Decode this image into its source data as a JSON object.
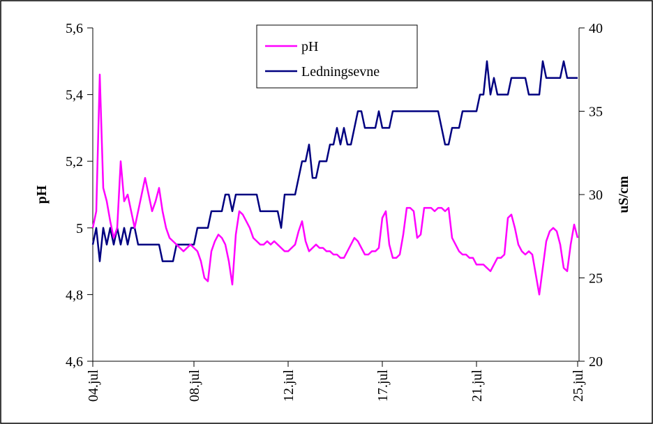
{
  "chart_data": {
    "type": "line",
    "categories": [
      "04.jul",
      null,
      null,
      null,
      null,
      null,
      null,
      null,
      null,
      null,
      null,
      null,
      null,
      null,
      null,
      null,
      null,
      null,
      null,
      null,
      null,
      null,
      null,
      null,
      null,
      null,
      null,
      null,
      null,
      "08.jul",
      null,
      null,
      null,
      null,
      null,
      null,
      null,
      null,
      null,
      null,
      null,
      null,
      null,
      null,
      null,
      null,
      null,
      null,
      null,
      null,
      null,
      null,
      null,
      null,
      null,
      null,
      "12.jul",
      null,
      null,
      null,
      null,
      null,
      null,
      null,
      null,
      null,
      null,
      null,
      null,
      null,
      null,
      null,
      null,
      null,
      null,
      null,
      null,
      null,
      null,
      null,
      null,
      null,
      null,
      "17.jul",
      null,
      null,
      null,
      null,
      null,
      null,
      null,
      null,
      null,
      null,
      null,
      null,
      null,
      null,
      null,
      null,
      null,
      null,
      null,
      null,
      null,
      null,
      null,
      null,
      null,
      null,
      "21.jul",
      null,
      null,
      null,
      null,
      null,
      null,
      null,
      null,
      null,
      null,
      null,
      null,
      null,
      null,
      null,
      null,
      null,
      null,
      null,
      null,
      null,
      null,
      null,
      null,
      null,
      null,
      null,
      null,
      "25.jul"
    ],
    "series": [
      {
        "name": "pH",
        "color": "#ff00ff",
        "values": [
          5.0,
          5.05,
          5.46,
          5.12,
          5.08,
          5.02,
          4.97,
          5.0,
          5.2,
          5.08,
          5.1,
          5.05,
          5.0,
          5.05,
          5.1,
          5.15,
          5.1,
          5.05,
          5.08,
          5.12,
          5.05,
          5.0,
          4.97,
          4.96,
          4.95,
          4.94,
          4.93,
          4.94,
          4.95,
          4.94,
          4.93,
          4.9,
          4.85,
          4.84,
          4.93,
          4.96,
          4.98,
          4.97,
          4.95,
          4.9,
          4.83,
          4.98,
          5.05,
          5.04,
          5.02,
          5.0,
          4.97,
          4.96,
          4.95,
          4.95,
          4.96,
          4.95,
          4.96,
          4.95,
          4.94,
          4.93,
          4.93,
          4.94,
          4.95,
          4.99,
          5.02,
          4.96,
          4.93,
          4.94,
          4.95,
          4.94,
          4.94,
          4.93,
          4.93,
          4.92,
          4.92,
          4.91,
          4.91,
          4.93,
          4.95,
          4.97,
          4.96,
          4.94,
          4.92,
          4.92,
          4.93,
          4.93,
          4.94,
          5.03,
          5.05,
          4.95,
          4.91,
          4.91,
          4.92,
          4.98,
          5.06,
          5.06,
          5.05,
          4.97,
          4.98,
          5.06,
          5.06,
          5.06,
          5.05,
          5.06,
          5.06,
          5.05,
          5.06,
          4.97,
          4.95,
          4.93,
          4.92,
          4.92,
          4.91,
          4.91,
          4.89,
          4.89,
          4.89,
          4.88,
          4.87,
          4.89,
          4.91,
          4.91,
          4.92,
          5.03,
          5.04,
          5.0,
          4.95,
          4.93,
          4.92,
          4.93,
          4.92,
          4.86,
          4.8,
          4.88,
          4.96,
          4.99,
          5.0,
          4.99,
          4.95,
          4.88,
          4.87,
          4.95,
          5.01,
          4.97
        ]
      },
      {
        "name": "Ledningsevne",
        "color": "#000080",
        "axis": "y2",
        "values": [
          27,
          28,
          26,
          28,
          27,
          28,
          27,
          28,
          27,
          28,
          27,
          28,
          28,
          27,
          27,
          27,
          27,
          27,
          27,
          27,
          26,
          26,
          26,
          26,
          27,
          27,
          27,
          27,
          27,
          27,
          28,
          28,
          28,
          28,
          29,
          29,
          29,
          29,
          30,
          30,
          29,
          30,
          30,
          30,
          30,
          30,
          30,
          30,
          29,
          29,
          29,
          29,
          29,
          29,
          28,
          30,
          30,
          30,
          30,
          31,
          32,
          32,
          33,
          31,
          31,
          32,
          32,
          32,
          33,
          33,
          34,
          33,
          34,
          33,
          33,
          34,
          35,
          35,
          34,
          34,
          34,
          34,
          35,
          34,
          34,
          34,
          35,
          35,
          35,
          35,
          35,
          35,
          35,
          35,
          35,
          35,
          35,
          35,
          35,
          35,
          34,
          33,
          33,
          34,
          34,
          34,
          35,
          35,
          35,
          35,
          35,
          36,
          36,
          38,
          36,
          37,
          36,
          36,
          36,
          36,
          37,
          37,
          37,
          37,
          37,
          36,
          36,
          36,
          36,
          38,
          37,
          37,
          37,
          37,
          37,
          38,
          37,
          37,
          37,
          37
        ]
      }
    ],
    "y_label": "pH",
    "y2_label": "uS/cm",
    "ylim": [
      4.6,
      5.6
    ],
    "yticks": [
      {
        "value": 4.6,
        "label": "4,6"
      },
      {
        "value": 4.8,
        "label": "4,8"
      },
      5,
      {
        "value": 5.2,
        "label": "5,2"
      },
      {
        "value": 5.4,
        "label": "5,4"
      },
      {
        "value": 5.6,
        "label": "5,6"
      }
    ],
    "y2lim": [
      20,
      40
    ],
    "y2ticks": [
      20,
      25,
      30,
      35,
      40
    ],
    "legend": "top-center",
    "grid": false
  }
}
